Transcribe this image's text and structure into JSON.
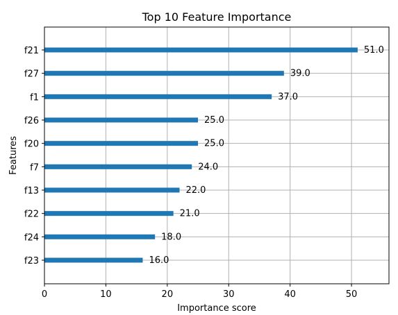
{
  "chart_data": {
    "type": "bar",
    "orientation": "horizontal",
    "title": "Top 10 Feature Importance",
    "xlabel": "Importance score",
    "ylabel": "Features",
    "categories": [
      "f21",
      "f27",
      "f1",
      "f26",
      "f20",
      "f7",
      "f13",
      "f22",
      "f24",
      "f23"
    ],
    "values": [
      51.0,
      39.0,
      37.0,
      25.0,
      25.0,
      24.0,
      22.0,
      21.0,
      18.0,
      16.0
    ],
    "value_labels": [
      "51.0",
      "39.0",
      "37.0",
      "25.0",
      "25.0",
      "24.0",
      "22.0",
      "21.0",
      "18.0",
      "16.0"
    ],
    "xlim": [
      0,
      56.1
    ],
    "xticks": [
      0,
      10,
      20,
      30,
      40,
      50
    ],
    "xtick_labels": [
      "0",
      "10",
      "20",
      "30",
      "40",
      "50"
    ],
    "grid": true,
    "bar_color": "#1f77b4",
    "grid_color": "#b0b0b0"
  }
}
